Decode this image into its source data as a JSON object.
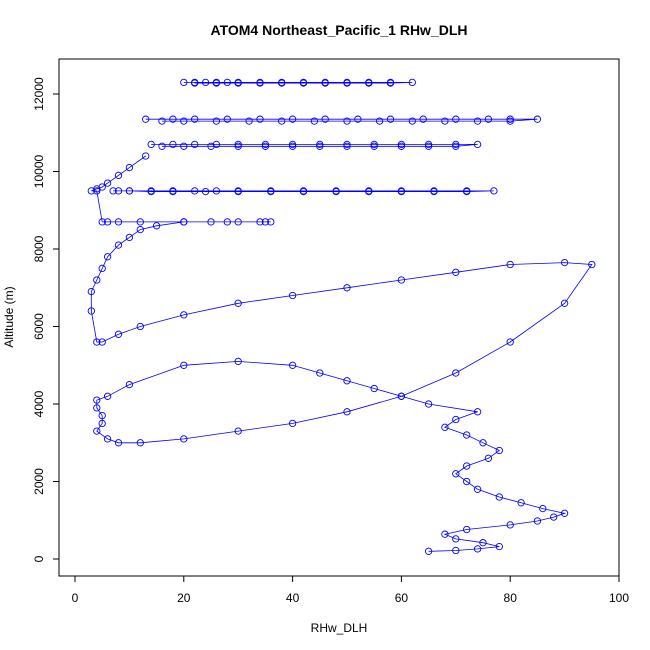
{
  "chart_data": {
    "type": "scatter",
    "title": "ATOM4 Northeast_Pacific_1 RHw_DLH",
    "xlabel": "RHw_DLH",
    "ylabel": "Altitude (m)",
    "xlim": [
      0,
      100
    ],
    "ylim": [
      0,
      12000
    ],
    "x_ticks": [
      0,
      20,
      40,
      60,
      80,
      100
    ],
    "y_ticks": [
      0,
      2000,
      4000,
      6000,
      8000,
      10000,
      12000
    ],
    "x_tick_labels": [
      "0",
      "20",
      "40",
      "60",
      "80",
      "100"
    ],
    "y_tick_labels": [
      "0",
      "2000",
      "4000",
      "6000",
      "8000",
      "10000",
      "12000"
    ],
    "marker": "open-circle",
    "connected": true,
    "grid": false,
    "color": "#0000ff",
    "series": [
      {
        "x": [
          65,
          70,
          74,
          78,
          75,
          70,
          68,
          72,
          80,
          85,
          88,
          90,
          86,
          82,
          78,
          74,
          72,
          70,
          72,
          76,
          78,
          75,
          72,
          68,
          70,
          74,
          65,
          60,
          55,
          50,
          45,
          40,
          30,
          20,
          10,
          6,
          4,
          4,
          5,
          5,
          4,
          6,
          8,
          12,
          20,
          30,
          40,
          50,
          60,
          70,
          80,
          90,
          95,
          90,
          80,
          70,
          60,
          50,
          40,
          30,
          20,
          12,
          8,
          5,
          4,
          3,
          3,
          4,
          5,
          6,
          8,
          10,
          12,
          15,
          20,
          25,
          30,
          35,
          36,
          34,
          28,
          20,
          12,
          8,
          6,
          5,
          4,
          3,
          4,
          5,
          6,
          8,
          10,
          13
        ],
        "y": [
          200,
          220,
          260,
          320,
          420,
          520,
          640,
          760,
          880,
          980,
          1080,
          1180,
          1300,
          1450,
          1600,
          1800,
          2000,
          2200,
          2400,
          2600,
          2800,
          3000,
          3200,
          3400,
          3600,
          3800,
          4000,
          4200,
          4400,
          4600,
          4800,
          5000,
          5100,
          5000,
          4500,
          4200,
          4100,
          3900,
          3700,
          3500,
          3300,
          3100,
          3000,
          3000,
          3100,
          3300,
          3500,
          3800,
          4200,
          4800,
          5600,
          6600,
          7600,
          7650,
          7600,
          7400,
          7200,
          7000,
          6800,
          6600,
          6300,
          6000,
          5800,
          5600,
          5600,
          6400,
          6900,
          7200,
          7500,
          7800,
          8100,
          8300,
          8500,
          8600,
          8700,
          8700,
          8700,
          8700,
          8700,
          8700,
          8700,
          8700,
          8700,
          8700,
          8700,
          8700,
          9500,
          9500,
          9550,
          9600,
          9700,
          9900,
          10100,
          10400
        ]
      },
      {
        "x": [
          10,
          14,
          18,
          22,
          26,
          30,
          36,
          42,
          48,
          54,
          60,
          66,
          72,
          77,
          72,
          66,
          60,
          54,
          48,
          42,
          36,
          30,
          24,
          18,
          14,
          10,
          8,
          7
        ],
        "y": [
          9500,
          9500,
          9500,
          9500,
          9500,
          9500,
          9500,
          9500,
          9500,
          9500,
          9500,
          9500,
          9500,
          9500,
          9480,
          9480,
          9480,
          9480,
          9480,
          9480,
          9480,
          9480,
          9480,
          9480,
          9480,
          9500,
          9500,
          9500
        ]
      },
      {
        "x": [
          14,
          18,
          22,
          26,
          30,
          35,
          40,
          45,
          50,
          55,
          60,
          65,
          70,
          74,
          70,
          65,
          60,
          55,
          50,
          45,
          40,
          35,
          30,
          25,
          20,
          16
        ],
        "y": [
          10700,
          10700,
          10700,
          10700,
          10700,
          10700,
          10700,
          10700,
          10700,
          10700,
          10700,
          10700,
          10700,
          10700,
          10650,
          10650,
          10650,
          10650,
          10650,
          10650,
          10650,
          10650,
          10650,
          10650,
          10650,
          10650
        ]
      },
      {
        "x": [
          13,
          18,
          22,
          28,
          34,
          40,
          46,
          52,
          58,
          64,
          70,
          76,
          80,
          85,
          80,
          74,
          68,
          62,
          56,
          50,
          44,
          38,
          32,
          26,
          20,
          16
        ],
        "y": [
          11350,
          11350,
          11350,
          11350,
          11350,
          11350,
          11350,
          11350,
          11350,
          11350,
          11350,
          11350,
          11350,
          11350,
          11300,
          11300,
          11300,
          11300,
          11300,
          11300,
          11300,
          11300,
          11300,
          11300,
          11300,
          11300
        ]
      },
      {
        "x": [
          20,
          22,
          24,
          26,
          28,
          30,
          34,
          38,
          42,
          46,
          50,
          54,
          58,
          62,
          58,
          54,
          50,
          46,
          42,
          38,
          34,
          30,
          26,
          22
        ],
        "y": [
          12300,
          12300,
          12300,
          12300,
          12300,
          12300,
          12300,
          12300,
          12300,
          12300,
          12300,
          12300,
          12300,
          12300,
          12280,
          12280,
          12280,
          12280,
          12280,
          12280,
          12280,
          12280,
          12280,
          12280
        ]
      }
    ]
  }
}
